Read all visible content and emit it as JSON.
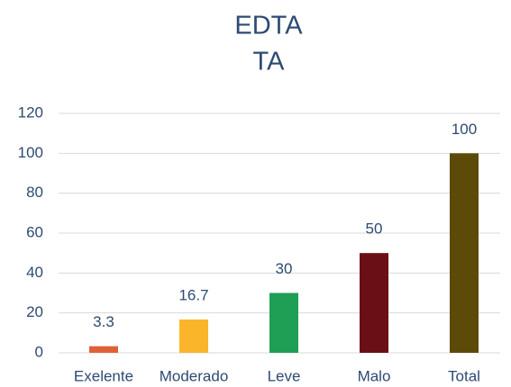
{
  "chart_data": {
    "type": "bar",
    "title": [
      "EDTA",
      "TA"
    ],
    "categories": [
      "Exelente",
      "Moderado",
      "Leve",
      "Malo",
      "Total"
    ],
    "values": [
      3.3,
      16.7,
      30,
      50,
      100
    ],
    "colors": [
      "#e0603a",
      "#fbb52b",
      "#1f9e55",
      "#6b0f17",
      "#5c4a08"
    ],
    "ylim": [
      0,
      120
    ],
    "yticks": [
      0,
      20,
      40,
      60,
      80,
      100,
      120
    ],
    "grid": true
  }
}
